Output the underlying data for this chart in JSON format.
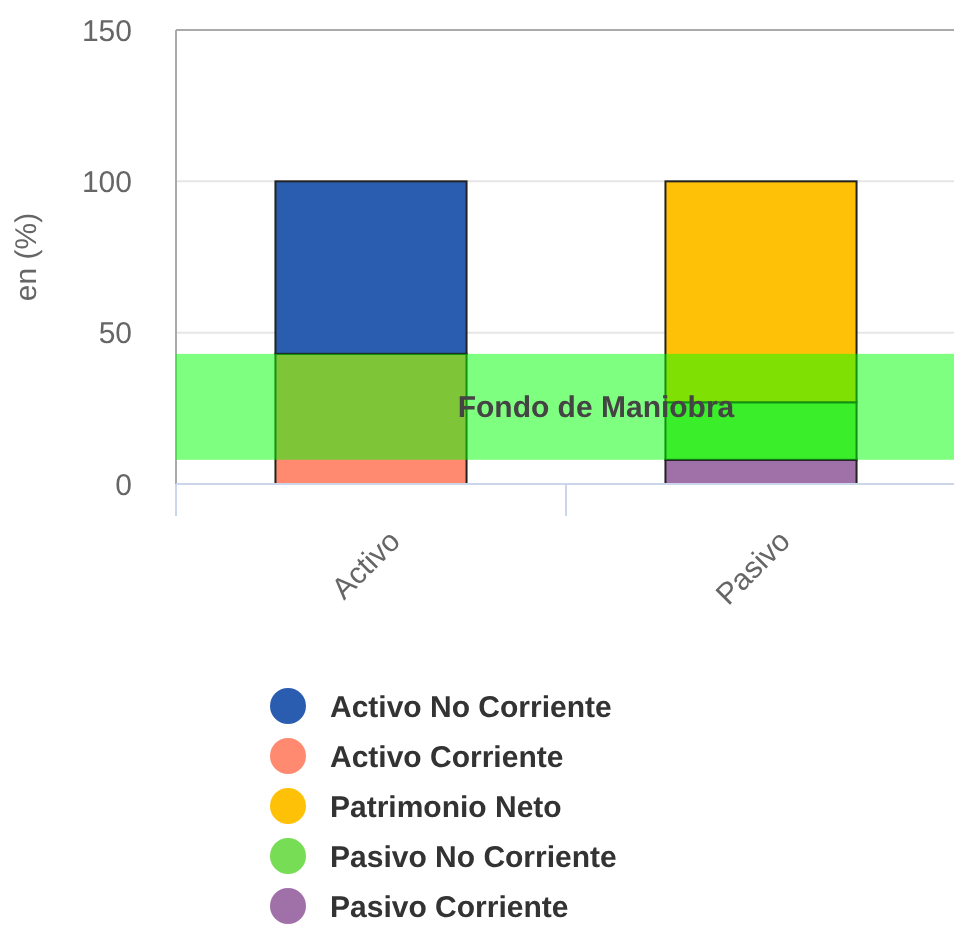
{
  "chart_data": {
    "type": "bar",
    "stacked": true,
    "categories": [
      "Activo",
      "Pasivo"
    ],
    "ylabel": "en (%)",
    "ylim": [
      0,
      150
    ],
    "yticks": [
      0,
      50,
      100,
      150
    ],
    "grid": "y",
    "legend": "bottom",
    "series": [
      {
        "name": "Pasivo Corriente",
        "color": "#a070a8",
        "values": [
          null,
          8
        ]
      },
      {
        "name": "Pasivo No Corriente",
        "color": "#77dd55",
        "values": [
          null,
          19
        ]
      },
      {
        "name": "Patrimonio Neto",
        "color": "#ffc107",
        "values": [
          null,
          73
        ]
      },
      {
        "name": "Activo Corriente",
        "color": "#ff8a70",
        "values": [
          43,
          null
        ]
      },
      {
        "name": "Activo No Corriente",
        "color": "#2a5db0",
        "values": [
          57,
          null
        ]
      }
    ],
    "bands": [
      {
        "axis": "y",
        "from": 8,
        "to": 43,
        "label": "Fondo de Maniobra",
        "color": "#00ff00"
      }
    ]
  }
}
